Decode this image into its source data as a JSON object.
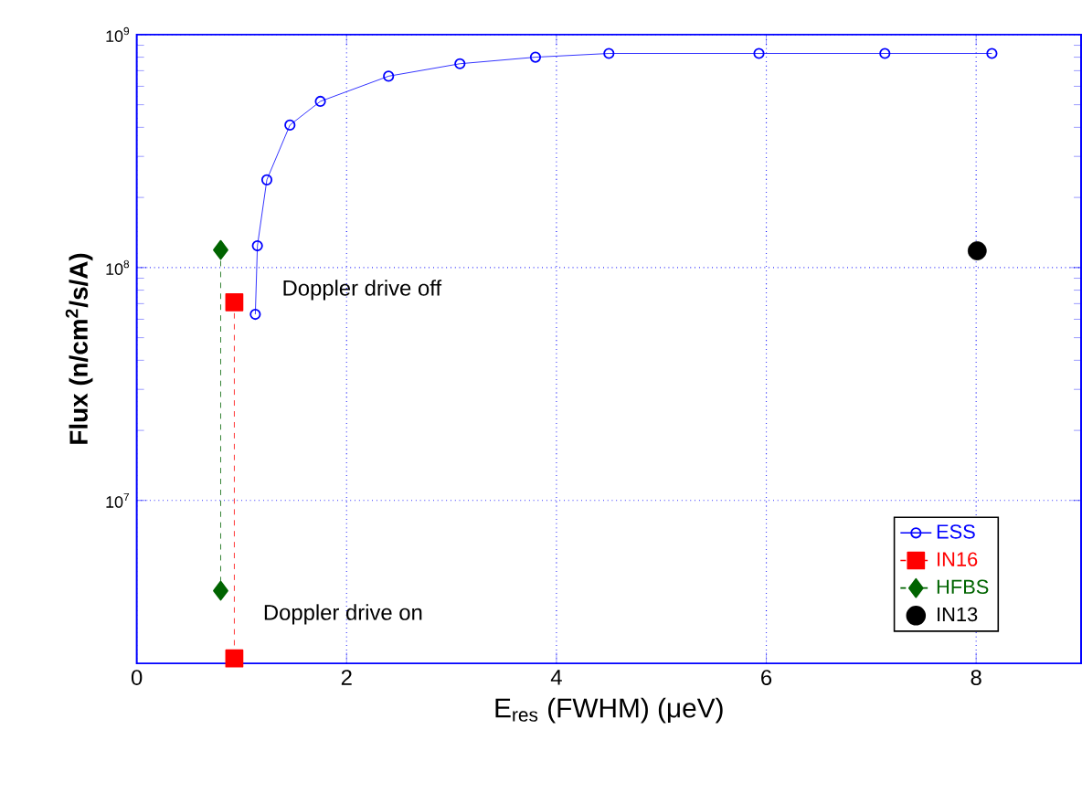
{
  "chart_data": {
    "type": "line",
    "xlabel": "E$_{res}$ (FWHM)  (μeV)",
    "ylabel": "Flux  (n/cm$^{2}$/s/A)",
    "xlim": [
      0,
      9
    ],
    "xticks": [
      0,
      2,
      4,
      6,
      8
    ],
    "ylim": [
      2000000,
      1000000000
    ],
    "yticks": [
      {
        "value": 10000000,
        "label": "10$^{7}$"
      },
      {
        "value": 100000000,
        "label": "10$^{8}$"
      },
      {
        "value": 1000000000,
        "label": "10$^{9}$"
      }
    ],
    "log": "y",
    "grid": true,
    "legend": "bottom right",
    "series": [
      {
        "name": "ESS",
        "color": "#0000ff",
        "marker": "circle",
        "line_style": "solid",
        "x": [
          1.13,
          1.15,
          1.24,
          1.46,
          1.75,
          2.4,
          3.08,
          3.8,
          4.5,
          5.93,
          7.13,
          8.15
        ],
        "values": [
          63000000,
          124000000,
          238000000,
          409000000,
          517000000,
          663000000,
          750000000,
          800000000,
          830000000,
          830000000,
          830000000,
          830000000
        ]
      },
      {
        "name": "IN16",
        "color": "#ff0000",
        "marker": "square",
        "line_style": "dashed",
        "x": [
          0.93,
          0.93
        ],
        "values": [
          71000000,
          2100000
        ]
      },
      {
        "name": "HFBS",
        "color": "#006400",
        "marker": "diamond",
        "line_style": "dashed",
        "x": [
          0.8,
          0.8
        ],
        "values": [
          119000000,
          4100000
        ]
      },
      {
        "name": "IN13",
        "type": "scatter",
        "color": "#000000",
        "marker": "circle",
        "x": [
          8.01
        ],
        "values": [
          118000000
        ]
      }
    ],
    "annotations": [
      "Doppler drive off",
      "Doppler drive on"
    ]
  }
}
